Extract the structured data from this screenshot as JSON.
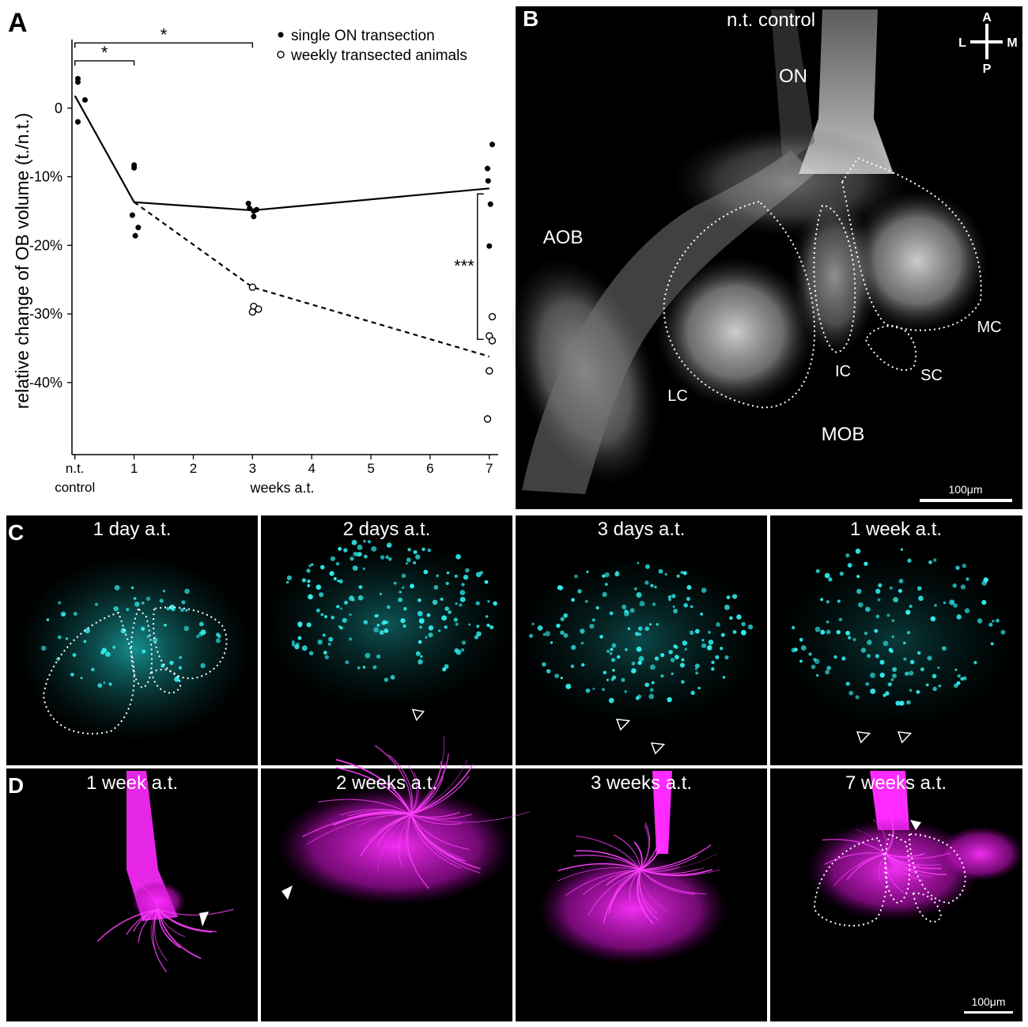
{
  "panel_letters": {
    "a": "A",
    "b": "B",
    "c": "C",
    "d": "D"
  },
  "chart_data": {
    "type": "scatter",
    "ylabel": "relative change of OB volume (t./n.t.)",
    "xlabel": "weeks a.t.",
    "x_ticks": [
      {
        "x": 0,
        "label": "n.t.",
        "label2": "control"
      },
      {
        "x": 1,
        "label": "1"
      },
      {
        "x": 2,
        "label": "2"
      },
      {
        "x": 3,
        "label": "3"
      },
      {
        "x": 4,
        "label": "4"
      },
      {
        "x": 5,
        "label": "5"
      },
      {
        "x": 6,
        "label": "6"
      },
      {
        "x": 7,
        "label": "7"
      }
    ],
    "y_ticks": [
      {
        "y": 0,
        "label": "0"
      },
      {
        "y": -10,
        "label": "-10%"
      },
      {
        "y": -20,
        "label": "-20%"
      },
      {
        "y": -30,
        "label": "-30%"
      },
      {
        "y": -40,
        "label": "-40%"
      }
    ],
    "xlim": [
      -0.05,
      7.15
    ],
    "ylim": [
      -50.5,
      10
    ],
    "legend_position": "top-right",
    "series": [
      {
        "name": "single ON transection",
        "marker": "filled",
        "line_style": "solid",
        "points": [
          {
            "x": 0.05,
            "y": 4.3
          },
          {
            "x": 0.05,
            "y": 3.8
          },
          {
            "x": 0.17,
            "y": 1.2
          },
          {
            "x": 0.05,
            "y": -2.0
          },
          {
            "x": 1.0,
            "y": -8.3
          },
          {
            "x": 1.0,
            "y": -8.7
          },
          {
            "x": 0.97,
            "y": -15.6
          },
          {
            "x": 1.07,
            "y": -17.4
          },
          {
            "x": 1.02,
            "y": -18.6
          },
          {
            "x": 2.93,
            "y": -13.9
          },
          {
            "x": 2.95,
            "y": -14.6
          },
          {
            "x": 3.02,
            "y": -15.0
          },
          {
            "x": 3.07,
            "y": -14.8
          },
          {
            "x": 3.02,
            "y": -15.8
          },
          {
            "x": 7.05,
            "y": -5.3
          },
          {
            "x": 6.97,
            "y": -8.8
          },
          {
            "x": 6.98,
            "y": -10.6
          },
          {
            "x": 7.02,
            "y": -14.0
          },
          {
            "x": 7.0,
            "y": -20.1
          }
        ],
        "line": [
          {
            "x": 0.0,
            "y": 1.8
          },
          {
            "x": 1.0,
            "y": -13.7
          },
          {
            "x": 3.0,
            "y": -14.9
          },
          {
            "x": 7.0,
            "y": -11.7
          }
        ]
      },
      {
        "name": "weekly transected animals",
        "marker": "open",
        "line_style": "dashed",
        "points": [
          {
            "x": 3.0,
            "y": -26.1
          },
          {
            "x": 3.02,
            "y": -28.9
          },
          {
            "x": 3.0,
            "y": -29.7
          },
          {
            "x": 3.1,
            "y": -29.3
          },
          {
            "x": 7.05,
            "y": -30.4
          },
          {
            "x": 7.0,
            "y": -33.2
          },
          {
            "x": 7.05,
            "y": -33.9
          },
          {
            "x": 7.0,
            "y": -38.3
          },
          {
            "x": 6.97,
            "y": -45.3
          }
        ],
        "line": [
          {
            "x": 1.0,
            "y": -13.7
          },
          {
            "x": 3.0,
            "y": -26.1
          },
          {
            "x": 7.0,
            "y": -36.2
          }
        ]
      }
    ],
    "significance": [
      {
        "label": "*",
        "x1": 0.0,
        "x2": 1.0,
        "y": 6.9
      },
      {
        "label": "*",
        "x1": 0.0,
        "x2": 3.0,
        "y": 9.5
      },
      {
        "label": "***",
        "x": 6.8,
        "y1": -12.5,
        "y2": -33.7
      }
    ]
  },
  "panel_b": {
    "title": "n.t. control",
    "labels": {
      "on": "ON",
      "aob": "AOB",
      "lc": "LC",
      "ic": "IC",
      "sc": "SC",
      "mc": "MC",
      "mob": "MOB"
    },
    "compass": {
      "a": "A",
      "p": "P",
      "l": "L",
      "m": "M"
    },
    "scale": "100μm"
  },
  "panel_c": {
    "titles": [
      "1 day a.t.",
      "2 days a.t.",
      "3 days a.t.",
      "1 week a.t."
    ],
    "color": "#19e6e6"
  },
  "panel_d": {
    "titles": [
      "1 week a.t.",
      "2 weeks a.t.",
      "3 weeks a.t.",
      "7 weeks a.t."
    ],
    "color": "#ff19ff",
    "scale": "100μm"
  }
}
